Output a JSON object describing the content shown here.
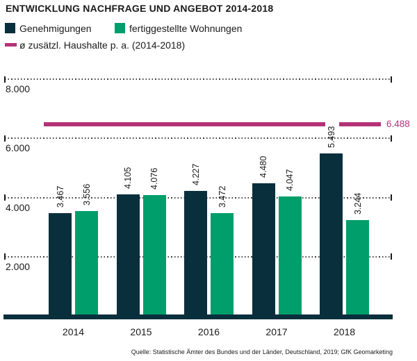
{
  "title": "ENTWICKLUNG NACHFRAGE UND ANGEBOT 2014-2018",
  "legend": {
    "series1_label": "Genehmigungen",
    "series2_label": "fertiggestellte Wohnungen",
    "reference_label": "ø zusätzl. Haushalte p. a. (2014-2018)"
  },
  "colors": {
    "series1": "#0a2f3c",
    "series2": "#009e6a",
    "reference": "#b43278",
    "text": "#1a1a1a"
  },
  "chart_data": {
    "type": "bar",
    "title": "ENTWICKLUNG NACHFRAGE UND ANGEBOT 2014-2018",
    "categories": [
      "2014",
      "2015",
      "2016",
      "2017",
      "2018"
    ],
    "series": [
      {
        "name": "Genehmigungen",
        "color": "#0a2f3c",
        "values": [
          3467,
          4105,
          4227,
          4480,
          5493
        ],
        "value_labels": [
          "3.467",
          "4.105",
          "4.227",
          "4.480",
          "5.493"
        ]
      },
      {
        "name": "fertiggestellte Wohnungen",
        "color": "#009e6a",
        "values": [
          3556,
          4076,
          3472,
          4047,
          3244
        ],
        "value_labels": [
          "3.556",
          "4.076",
          "3.472",
          "4.047",
          "3.244"
        ]
      }
    ],
    "reference_line": {
      "name": "ø zusätzl. Haushalte p. a. (2014-2018)",
      "value": 6488,
      "value_label": "6.488",
      "color": "#b43278"
    },
    "y_axis": {
      "ticks": [
        {
          "value": 2000,
          "label": "2.000"
        },
        {
          "value": 4000,
          "label": "4.000"
        },
        {
          "value": 6000,
          "label": "6.000"
        },
        {
          "value": 8000,
          "label": "8.000"
        }
      ],
      "range": [
        0,
        8600
      ]
    },
    "grid": "horizontal-dotted",
    "legend_position": "top"
  },
  "source": "Quelle: Statistische Ämter des Bundes und der Länder, Deutschland, 2019; GfK Geomarketing"
}
